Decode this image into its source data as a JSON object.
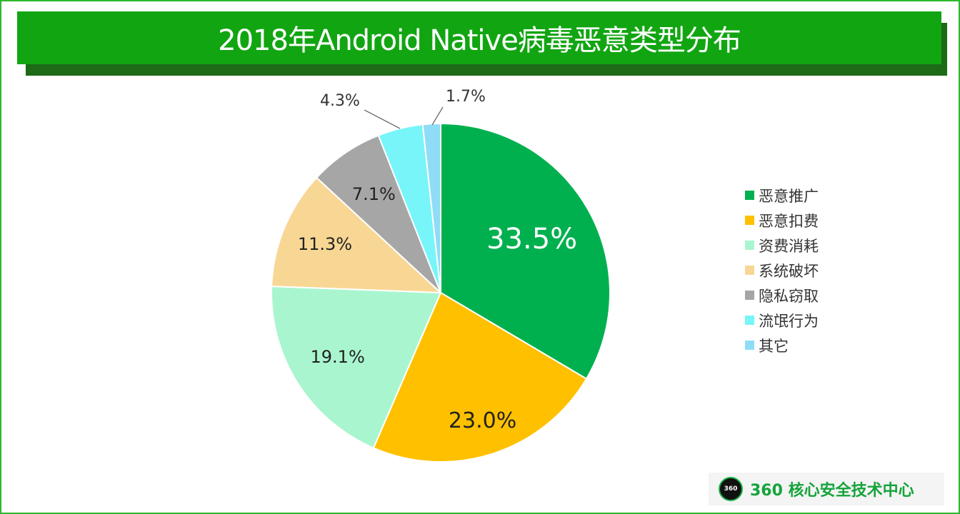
{
  "title": "2018年Android Native病毒恶意类型分布",
  "chart_data": {
    "type": "pie",
    "title": "2018年Android Native病毒恶意类型分布",
    "slices": [
      {
        "label": "恶意推广",
        "value": 33.5,
        "display": "33.5%",
        "color": "#00b04f"
      },
      {
        "label": "恶意扣费",
        "value": 23.0,
        "display": "23.0%",
        "color": "#ffc000"
      },
      {
        "label": "资费消耗",
        "value": 19.1,
        "display": "19.1%",
        "color": "#a9f5cf"
      },
      {
        "label": "系统破坏",
        "value": 11.3,
        "display": "11.3%",
        "color": "#f8d794"
      },
      {
        "label": "隐私窃取",
        "value": 7.1,
        "display": "7.1%",
        "color": "#a6a6a6"
      },
      {
        "label": "流氓行为",
        "value": 4.3,
        "display": "4.3%",
        "color": "#77f5f9"
      },
      {
        "label": "其它",
        "value": 1.7,
        "display": "1.7%",
        "color": "#8fdcf7"
      }
    ],
    "legend_position": "right",
    "start_angle": "12 o'clock, clockwise"
  },
  "brand": {
    "logo_text": "360",
    "name": "360 核心安全技术中心"
  }
}
